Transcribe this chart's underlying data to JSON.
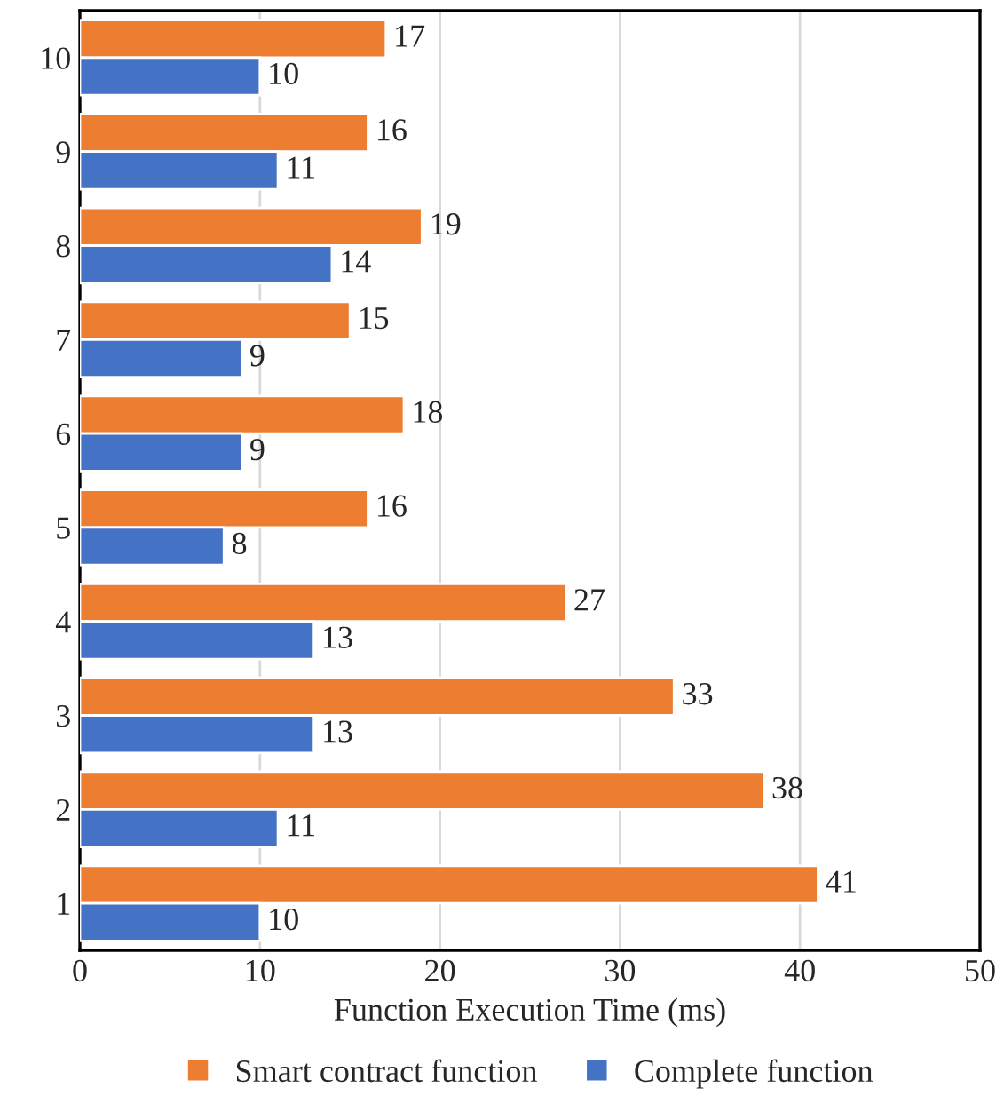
{
  "chart_data": {
    "type": "bar",
    "orientation": "horizontal",
    "xlabel": "Function Execution Time (ms)",
    "categories": [
      "10",
      "9",
      "8",
      "7",
      "6",
      "5",
      "4",
      "3",
      "2",
      "1"
    ],
    "series": [
      {
        "name": "Smart contract function",
        "color": "#ed7d31",
        "values": [
          17,
          16,
          19,
          15,
          18,
          16,
          27,
          33,
          38,
          41
        ]
      },
      {
        "name": "Complete function",
        "color": "#4472c4",
        "values": [
          10,
          11,
          14,
          9,
          9,
          8,
          13,
          13,
          11,
          10
        ]
      }
    ],
    "xlim": [
      0,
      50
    ],
    "xticks": [
      0,
      10,
      20,
      30,
      40,
      50
    ],
    "grid": "x",
    "legend": "bottom",
    "data_labels": true
  }
}
